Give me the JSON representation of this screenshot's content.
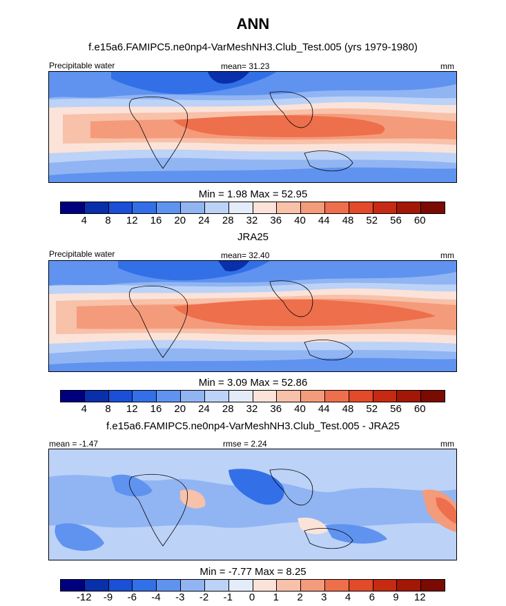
{
  "figure": {
    "title": "ANN"
  },
  "chart_data": [
    {
      "type": "heatmap",
      "title": "f.e15a6.FAMIPC5.ne0np4-VarMeshNH3.Club_Test.005 (yrs 1979-1980)",
      "left_label": "Precipitable water",
      "center_label": "mean=  31.23",
      "right_label": "mm",
      "min_max": "Min =   1.98 Max =  52.95",
      "min": 1.98,
      "max": 52.95,
      "mean": 31.23,
      "colorbar": {
        "levels": [
          "4",
          "8",
          "12",
          "16",
          "20",
          "24",
          "28",
          "32",
          "36",
          "40",
          "44",
          "48",
          "52",
          "56",
          "60"
        ],
        "colors": [
          "#00007f",
          "#0a2faa",
          "#1a4fd6",
          "#3370e8",
          "#5f93ef",
          "#91b5f3",
          "#bcd2f7",
          "#e4ecfa",
          "#fbe3d9",
          "#f8c1a9",
          "#f49b7b",
          "#ee6f4c",
          "#e24a29",
          "#c72a12",
          "#a31706",
          "#7a0b03"
        ]
      }
    },
    {
      "type": "heatmap",
      "title": "JRA25",
      "left_label": "Precipitable water",
      "center_label": "mean=  32.40",
      "right_label": "mm",
      "min_max": "Min =   3.09 Max =  52.86",
      "min": 3.09,
      "max": 52.86,
      "mean": 32.4,
      "colorbar": {
        "levels": [
          "4",
          "8",
          "12",
          "16",
          "20",
          "24",
          "28",
          "32",
          "36",
          "40",
          "44",
          "48",
          "52",
          "56",
          "60"
        ],
        "colors": [
          "#00007f",
          "#0a2faa",
          "#1a4fd6",
          "#3370e8",
          "#5f93ef",
          "#91b5f3",
          "#bcd2f7",
          "#e4ecfa",
          "#fbe3d9",
          "#f8c1a9",
          "#f49b7b",
          "#ee6f4c",
          "#e24a29",
          "#c72a12",
          "#a31706",
          "#7a0b03"
        ]
      }
    },
    {
      "type": "heatmap",
      "title": "f.e15a6.FAMIPC5.ne0np4-VarMeshNH3.Club_Test.005 - JRA25",
      "left_label": "mean =  -1.47",
      "center_label": "rmse =   2.24",
      "right_label": "mm",
      "min_max": "Min =  -7.77 Max =   8.25",
      "min": -7.77,
      "max": 8.25,
      "mean": -1.47,
      "rmse": 2.24,
      "colorbar": {
        "levels": [
          "-12",
          "-9",
          "-6",
          "-4",
          "-3",
          "-2",
          "-1",
          "0",
          "1",
          "2",
          "3",
          "4",
          "6",
          "9",
          "12"
        ],
        "colors": [
          "#00007f",
          "#0a2faa",
          "#1a4fd6",
          "#3370e8",
          "#5f93ef",
          "#91b5f3",
          "#bcd2f7",
          "#e4ecfa",
          "#fbe3d9",
          "#f8c1a9",
          "#f49b7b",
          "#ee6f4c",
          "#e24a29",
          "#c72a12",
          "#a31706",
          "#7a0b03"
        ]
      }
    }
  ]
}
